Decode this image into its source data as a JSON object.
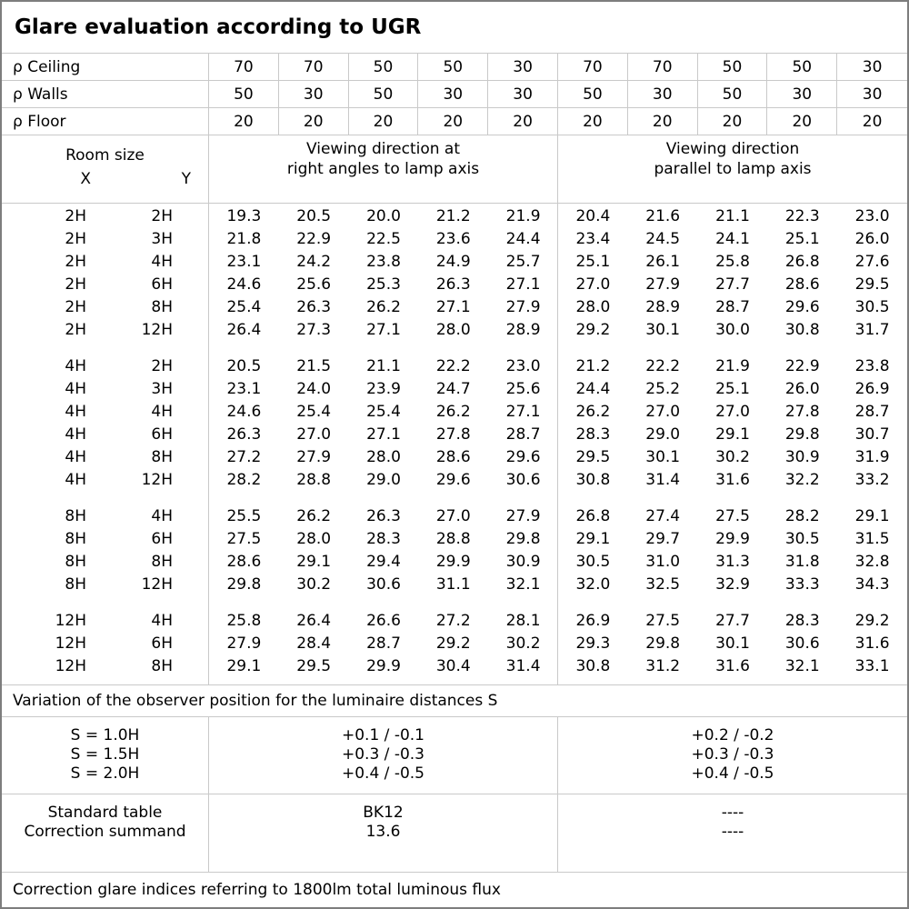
{
  "title": "Glare evaluation according to UGR",
  "reflectances": {
    "rows": [
      {
        "label": "ρ Ceiling",
        "values": [
          "70",
          "70",
          "50",
          "50",
          "30",
          "70",
          "70",
          "50",
          "50",
          "30"
        ]
      },
      {
        "label": "ρ Walls",
        "values": [
          "50",
          "30",
          "50",
          "30",
          "30",
          "50",
          "30",
          "50",
          "30",
          "30"
        ]
      },
      {
        "label": "ρ Floor",
        "values": [
          "20",
          "20",
          "20",
          "20",
          "20",
          "20",
          "20",
          "20",
          "20",
          "20"
        ]
      }
    ]
  },
  "header": {
    "room_size_label": "Room size",
    "x_label": "X",
    "y_label": "Y",
    "group_right_angles": [
      "Viewing direction at",
      "right angles to lamp axis"
    ],
    "group_parallel": [
      "Viewing direction",
      "parallel to lamp axis"
    ]
  },
  "ugr_blocks": [
    {
      "rows": [
        {
          "x": "2H",
          "y": "2H",
          "values": [
            "19.3",
            "20.5",
            "20.0",
            "21.2",
            "21.9",
            "20.4",
            "21.6",
            "21.1",
            "22.3",
            "23.0"
          ]
        },
        {
          "x": "2H",
          "y": "3H",
          "values": [
            "21.8",
            "22.9",
            "22.5",
            "23.6",
            "24.4",
            "23.4",
            "24.5",
            "24.1",
            "25.1",
            "26.0"
          ]
        },
        {
          "x": "2H",
          "y": "4H",
          "values": [
            "23.1",
            "24.2",
            "23.8",
            "24.9",
            "25.7",
            "25.1",
            "26.1",
            "25.8",
            "26.8",
            "27.6"
          ]
        },
        {
          "x": "2H",
          "y": "6H",
          "values": [
            "24.6",
            "25.6",
            "25.3",
            "26.3",
            "27.1",
            "27.0",
            "27.9",
            "27.7",
            "28.6",
            "29.5"
          ]
        },
        {
          "x": "2H",
          "y": "8H",
          "values": [
            "25.4",
            "26.3",
            "26.2",
            "27.1",
            "27.9",
            "28.0",
            "28.9",
            "28.7",
            "29.6",
            "30.5"
          ]
        },
        {
          "x": "2H",
          "y": "12H",
          "values": [
            "26.4",
            "27.3",
            "27.1",
            "28.0",
            "28.9",
            "29.2",
            "30.1",
            "30.0",
            "30.8",
            "31.7"
          ]
        }
      ]
    },
    {
      "rows": [
        {
          "x": "4H",
          "y": "2H",
          "values": [
            "20.5",
            "21.5",
            "21.1",
            "22.2",
            "23.0",
            "21.2",
            "22.2",
            "21.9",
            "22.9",
            "23.8"
          ]
        },
        {
          "x": "4H",
          "y": "3H",
          "values": [
            "23.1",
            "24.0",
            "23.9",
            "24.7",
            "25.6",
            "24.4",
            "25.2",
            "25.1",
            "26.0",
            "26.9"
          ]
        },
        {
          "x": "4H",
          "y": "4H",
          "values": [
            "24.6",
            "25.4",
            "25.4",
            "26.2",
            "27.1",
            "26.2",
            "27.0",
            "27.0",
            "27.8",
            "28.7"
          ]
        },
        {
          "x": "4H",
          "y": "6H",
          "values": [
            "26.3",
            "27.0",
            "27.1",
            "27.8",
            "28.7",
            "28.3",
            "29.0",
            "29.1",
            "29.8",
            "30.7"
          ]
        },
        {
          "x": "4H",
          "y": "8H",
          "values": [
            "27.2",
            "27.9",
            "28.0",
            "28.6",
            "29.6",
            "29.5",
            "30.1",
            "30.2",
            "30.9",
            "31.9"
          ]
        },
        {
          "x": "4H",
          "y": "12H",
          "values": [
            "28.2",
            "28.8",
            "29.0",
            "29.6",
            "30.6",
            "30.8",
            "31.4",
            "31.6",
            "32.2",
            "33.2"
          ]
        }
      ]
    },
    {
      "rows": [
        {
          "x": "8H",
          "y": "4H",
          "values": [
            "25.5",
            "26.2",
            "26.3",
            "27.0",
            "27.9",
            "26.8",
            "27.4",
            "27.5",
            "28.2",
            "29.1"
          ]
        },
        {
          "x": "8H",
          "y": "6H",
          "values": [
            "27.5",
            "28.0",
            "28.3",
            "28.8",
            "29.8",
            "29.1",
            "29.7",
            "29.9",
            "30.5",
            "31.5"
          ]
        },
        {
          "x": "8H",
          "y": "8H",
          "values": [
            "28.6",
            "29.1",
            "29.4",
            "29.9",
            "30.9",
            "30.5",
            "31.0",
            "31.3",
            "31.8",
            "32.8"
          ]
        },
        {
          "x": "8H",
          "y": "12H",
          "values": [
            "29.8",
            "30.2",
            "30.6",
            "31.1",
            "32.1",
            "32.0",
            "32.5",
            "32.9",
            "33.3",
            "34.3"
          ]
        }
      ]
    },
    {
      "rows": [
        {
          "x": "12H",
          "y": "4H",
          "values": [
            "25.8",
            "26.4",
            "26.6",
            "27.2",
            "28.1",
            "26.9",
            "27.5",
            "27.7",
            "28.3",
            "29.2"
          ]
        },
        {
          "x": "12H",
          "y": "6H",
          "values": [
            "27.9",
            "28.4",
            "28.7",
            "29.2",
            "30.2",
            "29.3",
            "29.8",
            "30.1",
            "30.6",
            "31.6"
          ]
        },
        {
          "x": "12H",
          "y": "8H",
          "values": [
            "29.1",
            "29.5",
            "29.9",
            "30.4",
            "31.4",
            "30.8",
            "31.2",
            "31.6",
            "32.1",
            "33.1"
          ]
        }
      ]
    }
  ],
  "variation_note": "Variation of the observer position for the luminaire distances S",
  "variation": {
    "labels": [
      "S = 1.0H",
      "S = 1.5H",
      "S = 2.0H"
    ],
    "right_angles": [
      "+0.1 / -0.1",
      "+0.3 / -0.3",
      "+0.4 / -0.5"
    ],
    "parallel": [
      "+0.2 / -0.2",
      "+0.3 / -0.3",
      "+0.4 / -0.5"
    ]
  },
  "summary": {
    "rows": [
      {
        "label": "Standard table",
        "right_angles": "BK12",
        "parallel": "----"
      },
      {
        "label": "Correction summand",
        "right_angles": "13.6",
        "parallel": "----"
      }
    ]
  },
  "footer_note": "Correction glare indices referring to 1800lm total luminous flux"
}
